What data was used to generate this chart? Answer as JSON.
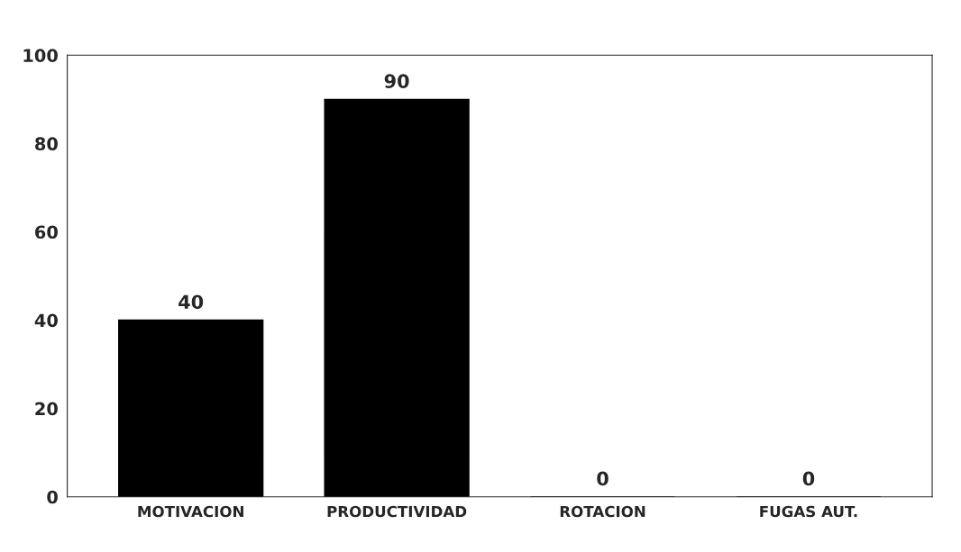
{
  "chart_data": {
    "type": "bar",
    "categories": [
      "MOTIVACION",
      "PRODUCTIVIDAD",
      "ROTACION",
      "FUGAS AUT."
    ],
    "values": [
      40,
      90,
      0,
      0
    ],
    "color": "#000000",
    "ylim": [
      0,
      100
    ],
    "yticks": [
      0,
      20,
      40,
      60,
      80,
      100
    ],
    "data_labels": true,
    "grid": false
  }
}
